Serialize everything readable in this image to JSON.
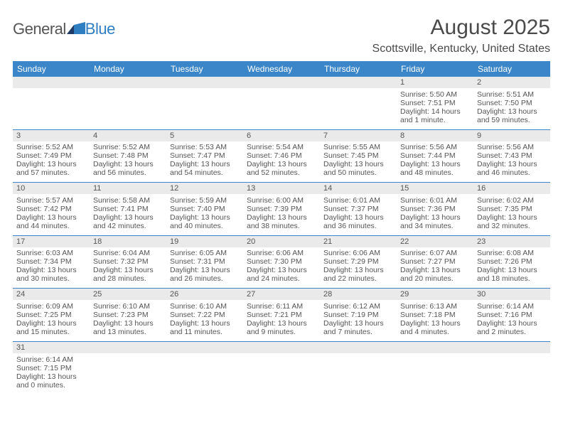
{
  "logo": {
    "text_a": "General",
    "text_b": "Blue"
  },
  "colors": {
    "header_bg": "#3a86c8",
    "header_fg": "#ffffff",
    "daynum_bg": "#eaeaea",
    "rule": "#3a86c8",
    "text": "#4a4a4a",
    "logo_blue": "#2f7ec2"
  },
  "title": "August 2025",
  "subtitle": "Scottsville, Kentucky, United States",
  "day_headers": [
    "Sunday",
    "Monday",
    "Tuesday",
    "Wednesday",
    "Thursday",
    "Friday",
    "Saturday"
  ],
  "weeks": [
    [
      null,
      null,
      null,
      null,
      null,
      {
        "n": "1",
        "l1": "Sunrise: 5:50 AM",
        "l2": "Sunset: 7:51 PM",
        "l3": "Daylight: 14 hours",
        "l4": "and 1 minute."
      },
      {
        "n": "2",
        "l1": "Sunrise: 5:51 AM",
        "l2": "Sunset: 7:50 PM",
        "l3": "Daylight: 13 hours",
        "l4": "and 59 minutes."
      }
    ],
    [
      {
        "n": "3",
        "l1": "Sunrise: 5:52 AM",
        "l2": "Sunset: 7:49 PM",
        "l3": "Daylight: 13 hours",
        "l4": "and 57 minutes."
      },
      {
        "n": "4",
        "l1": "Sunrise: 5:52 AM",
        "l2": "Sunset: 7:48 PM",
        "l3": "Daylight: 13 hours",
        "l4": "and 56 minutes."
      },
      {
        "n": "5",
        "l1": "Sunrise: 5:53 AM",
        "l2": "Sunset: 7:47 PM",
        "l3": "Daylight: 13 hours",
        "l4": "and 54 minutes."
      },
      {
        "n": "6",
        "l1": "Sunrise: 5:54 AM",
        "l2": "Sunset: 7:46 PM",
        "l3": "Daylight: 13 hours",
        "l4": "and 52 minutes."
      },
      {
        "n": "7",
        "l1": "Sunrise: 5:55 AM",
        "l2": "Sunset: 7:45 PM",
        "l3": "Daylight: 13 hours",
        "l4": "and 50 minutes."
      },
      {
        "n": "8",
        "l1": "Sunrise: 5:56 AM",
        "l2": "Sunset: 7:44 PM",
        "l3": "Daylight: 13 hours",
        "l4": "and 48 minutes."
      },
      {
        "n": "9",
        "l1": "Sunrise: 5:56 AM",
        "l2": "Sunset: 7:43 PM",
        "l3": "Daylight: 13 hours",
        "l4": "and 46 minutes."
      }
    ],
    [
      {
        "n": "10",
        "l1": "Sunrise: 5:57 AM",
        "l2": "Sunset: 7:42 PM",
        "l3": "Daylight: 13 hours",
        "l4": "and 44 minutes."
      },
      {
        "n": "11",
        "l1": "Sunrise: 5:58 AM",
        "l2": "Sunset: 7:41 PM",
        "l3": "Daylight: 13 hours",
        "l4": "and 42 minutes."
      },
      {
        "n": "12",
        "l1": "Sunrise: 5:59 AM",
        "l2": "Sunset: 7:40 PM",
        "l3": "Daylight: 13 hours",
        "l4": "and 40 minutes."
      },
      {
        "n": "13",
        "l1": "Sunrise: 6:00 AM",
        "l2": "Sunset: 7:39 PM",
        "l3": "Daylight: 13 hours",
        "l4": "and 38 minutes."
      },
      {
        "n": "14",
        "l1": "Sunrise: 6:01 AM",
        "l2": "Sunset: 7:37 PM",
        "l3": "Daylight: 13 hours",
        "l4": "and 36 minutes."
      },
      {
        "n": "15",
        "l1": "Sunrise: 6:01 AM",
        "l2": "Sunset: 7:36 PM",
        "l3": "Daylight: 13 hours",
        "l4": "and 34 minutes."
      },
      {
        "n": "16",
        "l1": "Sunrise: 6:02 AM",
        "l2": "Sunset: 7:35 PM",
        "l3": "Daylight: 13 hours",
        "l4": "and 32 minutes."
      }
    ],
    [
      {
        "n": "17",
        "l1": "Sunrise: 6:03 AM",
        "l2": "Sunset: 7:34 PM",
        "l3": "Daylight: 13 hours",
        "l4": "and 30 minutes."
      },
      {
        "n": "18",
        "l1": "Sunrise: 6:04 AM",
        "l2": "Sunset: 7:32 PM",
        "l3": "Daylight: 13 hours",
        "l4": "and 28 minutes."
      },
      {
        "n": "19",
        "l1": "Sunrise: 6:05 AM",
        "l2": "Sunset: 7:31 PM",
        "l3": "Daylight: 13 hours",
        "l4": "and 26 minutes."
      },
      {
        "n": "20",
        "l1": "Sunrise: 6:06 AM",
        "l2": "Sunset: 7:30 PM",
        "l3": "Daylight: 13 hours",
        "l4": "and 24 minutes."
      },
      {
        "n": "21",
        "l1": "Sunrise: 6:06 AM",
        "l2": "Sunset: 7:29 PM",
        "l3": "Daylight: 13 hours",
        "l4": "and 22 minutes."
      },
      {
        "n": "22",
        "l1": "Sunrise: 6:07 AM",
        "l2": "Sunset: 7:27 PM",
        "l3": "Daylight: 13 hours",
        "l4": "and 20 minutes."
      },
      {
        "n": "23",
        "l1": "Sunrise: 6:08 AM",
        "l2": "Sunset: 7:26 PM",
        "l3": "Daylight: 13 hours",
        "l4": "and 18 minutes."
      }
    ],
    [
      {
        "n": "24",
        "l1": "Sunrise: 6:09 AM",
        "l2": "Sunset: 7:25 PM",
        "l3": "Daylight: 13 hours",
        "l4": "and 15 minutes."
      },
      {
        "n": "25",
        "l1": "Sunrise: 6:10 AM",
        "l2": "Sunset: 7:23 PM",
        "l3": "Daylight: 13 hours",
        "l4": "and 13 minutes."
      },
      {
        "n": "26",
        "l1": "Sunrise: 6:10 AM",
        "l2": "Sunset: 7:22 PM",
        "l3": "Daylight: 13 hours",
        "l4": "and 11 minutes."
      },
      {
        "n": "27",
        "l1": "Sunrise: 6:11 AM",
        "l2": "Sunset: 7:21 PM",
        "l3": "Daylight: 13 hours",
        "l4": "and 9 minutes."
      },
      {
        "n": "28",
        "l1": "Sunrise: 6:12 AM",
        "l2": "Sunset: 7:19 PM",
        "l3": "Daylight: 13 hours",
        "l4": "and 7 minutes."
      },
      {
        "n": "29",
        "l1": "Sunrise: 6:13 AM",
        "l2": "Sunset: 7:18 PM",
        "l3": "Daylight: 13 hours",
        "l4": "and 4 minutes."
      },
      {
        "n": "30",
        "l1": "Sunrise: 6:14 AM",
        "l2": "Sunset: 7:16 PM",
        "l3": "Daylight: 13 hours",
        "l4": "and 2 minutes."
      }
    ],
    [
      {
        "n": "31",
        "l1": "Sunrise: 6:14 AM",
        "l2": "Sunset: 7:15 PM",
        "l3": "Daylight: 13 hours",
        "l4": "and 0 minutes."
      },
      null,
      null,
      null,
      null,
      null,
      null
    ]
  ]
}
